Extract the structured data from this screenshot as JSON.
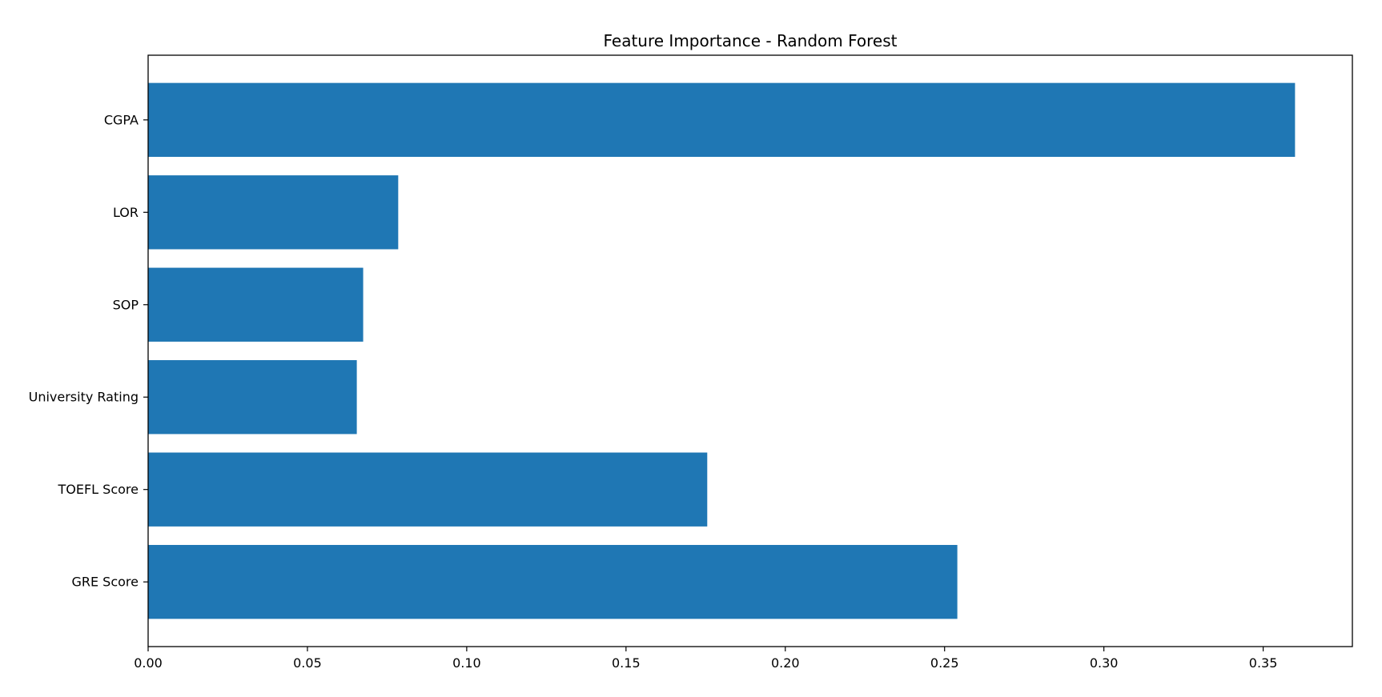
{
  "chart_data": {
    "type": "bar",
    "orientation": "horizontal",
    "title": "Feature Importance - Random Forest",
    "xlabel": "",
    "ylabel": "",
    "categories": [
      "GRE Score",
      "TOEFL Score",
      "University Rating",
      "SOP",
      "LOR",
      "CGPA"
    ],
    "values": [
      0.254,
      0.1755,
      0.0655,
      0.0675,
      0.0785,
      0.36
    ],
    "xlim": [
      0,
      0.378
    ],
    "xticks": [
      0.0,
      0.05,
      0.1,
      0.15,
      0.2,
      0.25,
      0.3,
      0.35
    ],
    "xtick_labels": [
      "0.00",
      "0.05",
      "0.10",
      "0.15",
      "0.20",
      "0.25",
      "0.30",
      "0.35"
    ],
    "grid": false,
    "bar_color": "#1f77b4"
  }
}
